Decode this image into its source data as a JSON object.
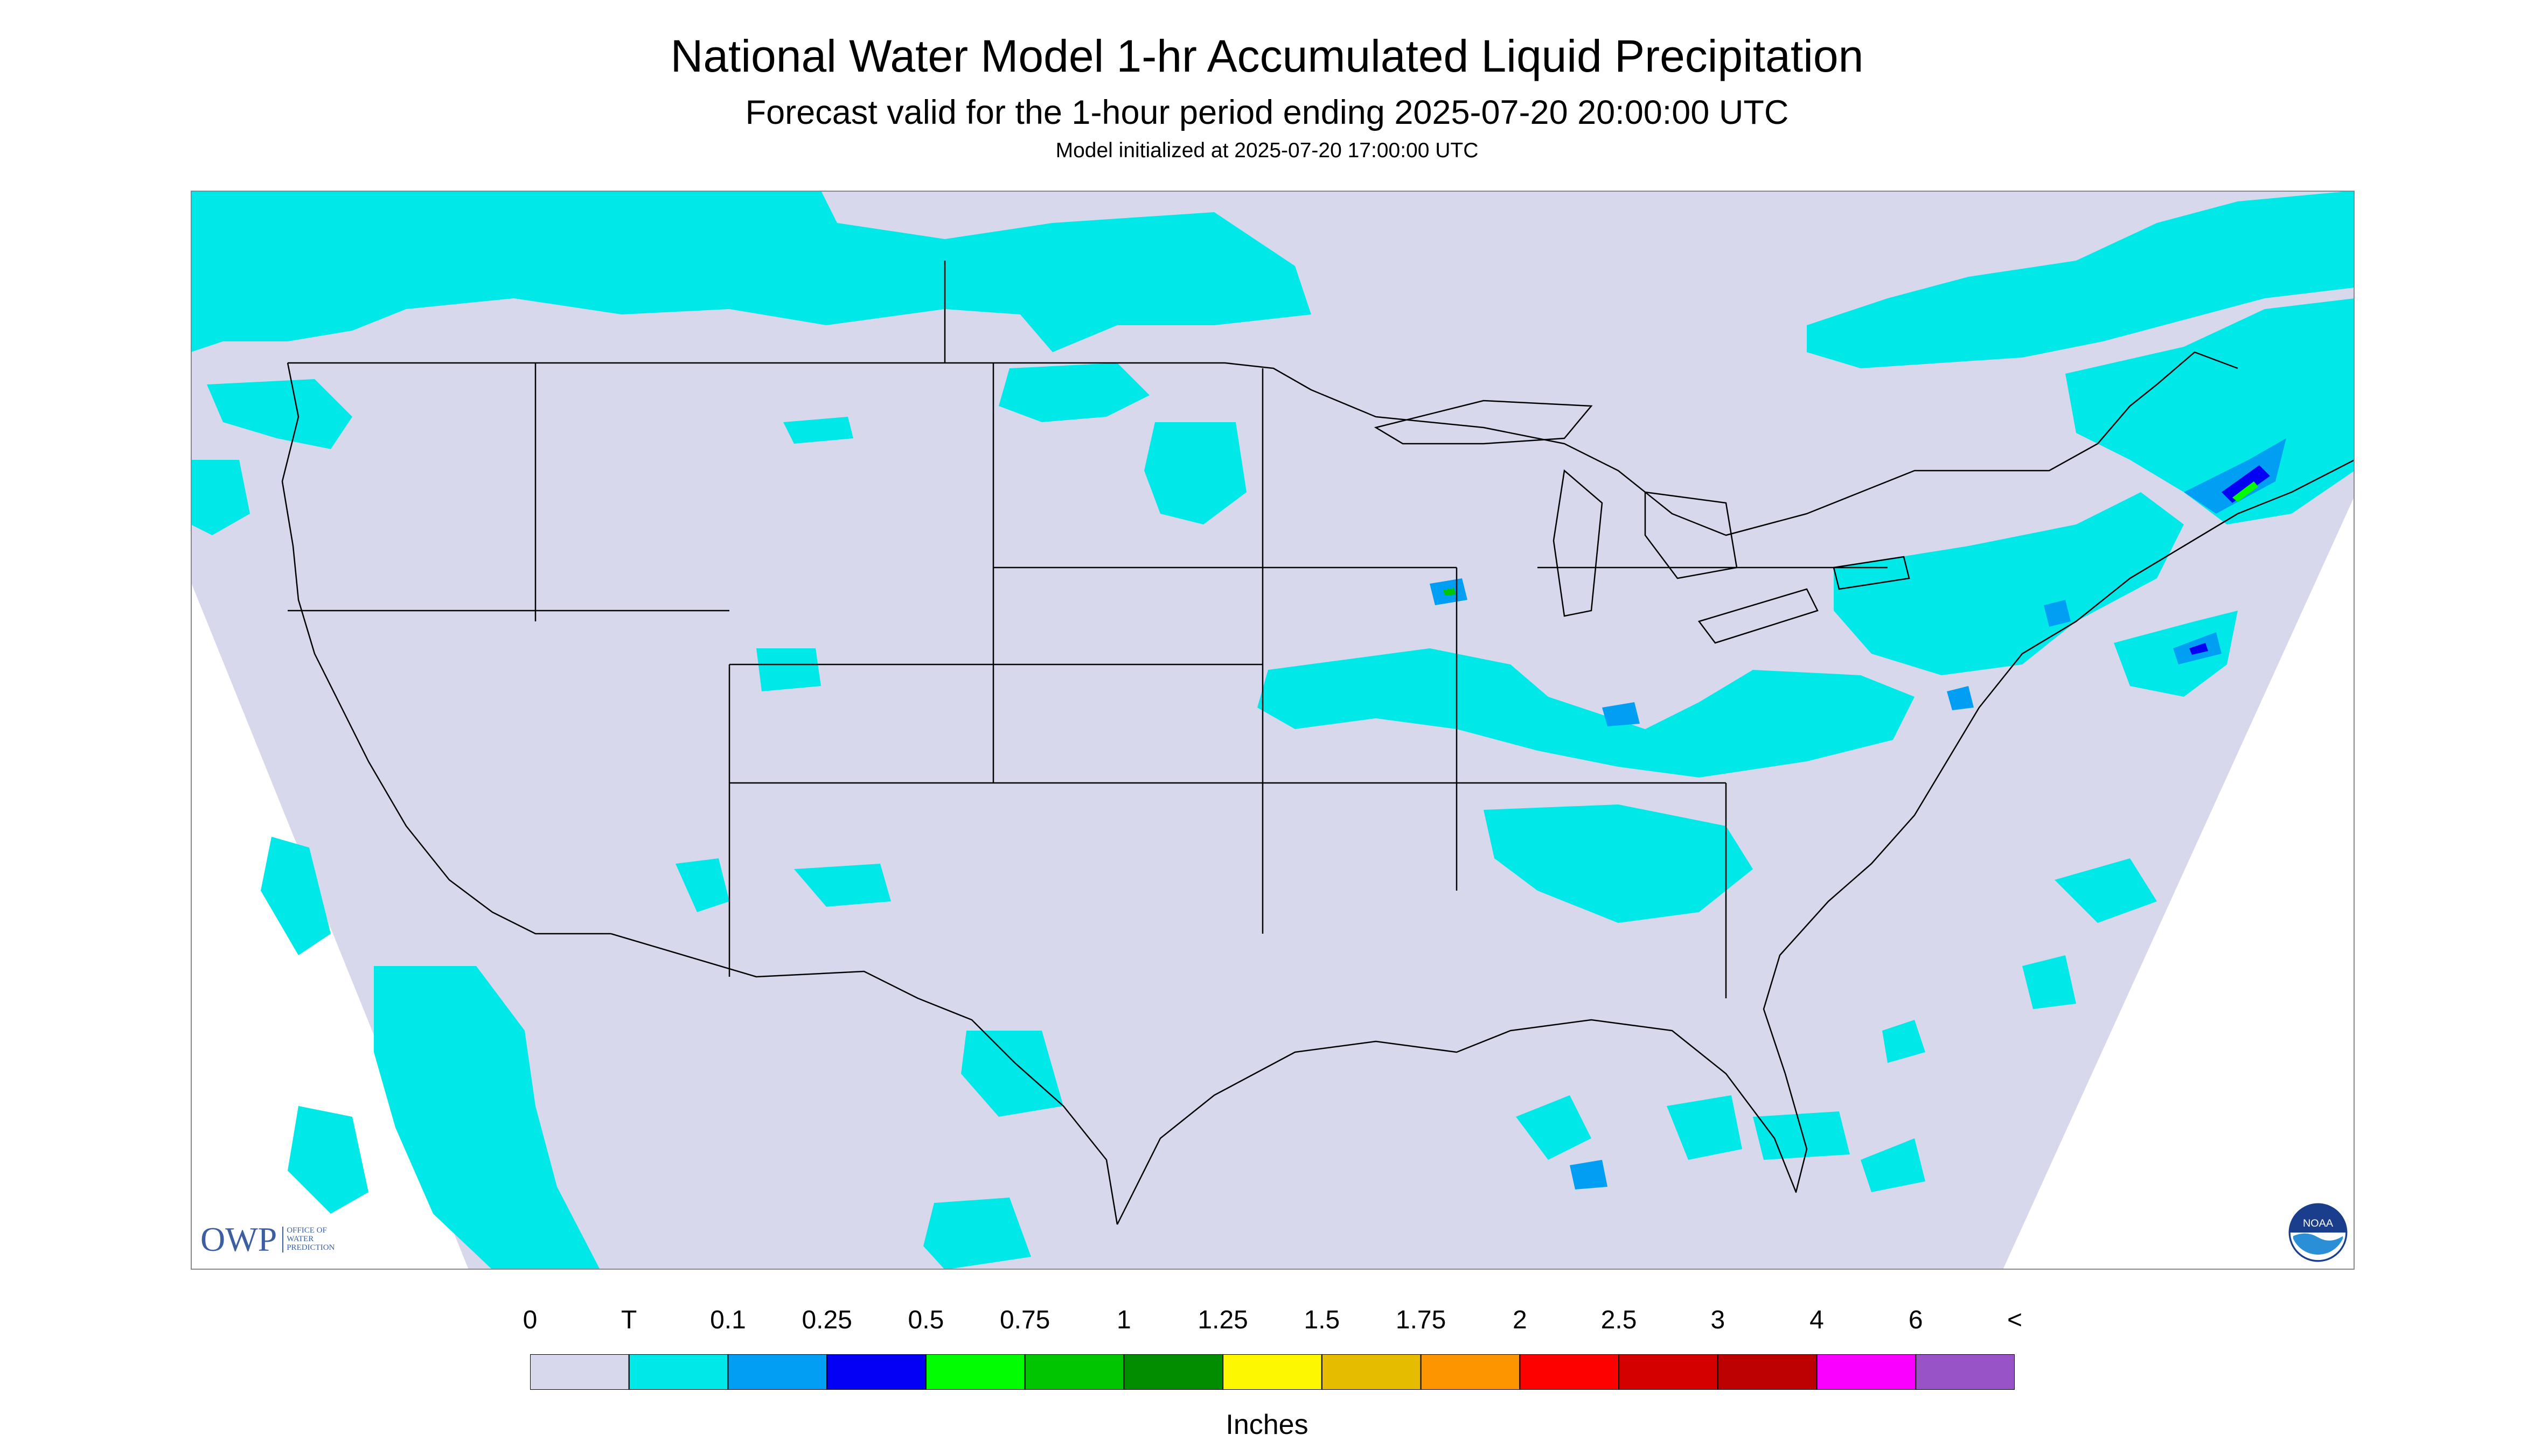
{
  "header": {
    "title": "National Water Model 1-hr Accumulated Liquid Precipitation",
    "subtitle": "Forecast valid for the 1-hour period ending 2025-07-20 20:00:00 UTC",
    "init": "Model initialized at 2025-07-20 17:00:00 UTC"
  },
  "map": {
    "background_color": "#d8d8ec",
    "projection": "lambert-conformal",
    "region": "CONUS"
  },
  "legend": {
    "labels": [
      "0",
      "T",
      "0.1",
      "0.25",
      "0.5",
      "0.75",
      "1",
      "1.25",
      "1.5",
      "1.75",
      "2",
      "2.5",
      "3",
      "4",
      "6",
      "<"
    ],
    "colors": [
      "#d8d8ec",
      "#00e8e8",
      "#019ff4",
      "#0300f4",
      "#02fd02",
      "#01c501",
      "#008e00",
      "#fdf802",
      "#e5bc00",
      "#fd9500",
      "#fd0000",
      "#d40000",
      "#bc0000",
      "#f800fd",
      "#9854c6"
    ],
    "units": "Inches"
  },
  "logos": {
    "owp_main": "OWP",
    "owp_sub": [
      "OFFICE OF",
      "WATER",
      "PREDICTION"
    ],
    "noaa_icon": "noaa-logo-icon",
    "noaa_text": "NOAA"
  }
}
